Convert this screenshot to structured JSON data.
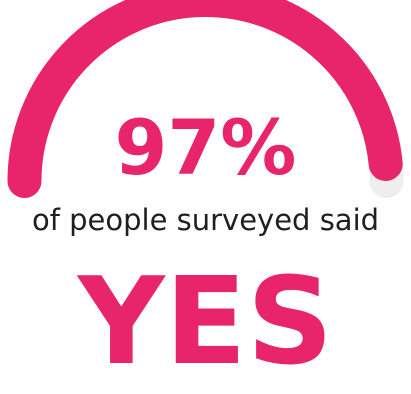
{
  "chart_data": {
    "type": "gauge",
    "value": 97,
    "max": 100,
    "value_label": "97%",
    "caption": "of people surveyed said",
    "answer": "YES"
  },
  "colors": {
    "fill": "#e8246a",
    "track": "#eeeeee",
    "caption_text": "#1f1f1f"
  }
}
